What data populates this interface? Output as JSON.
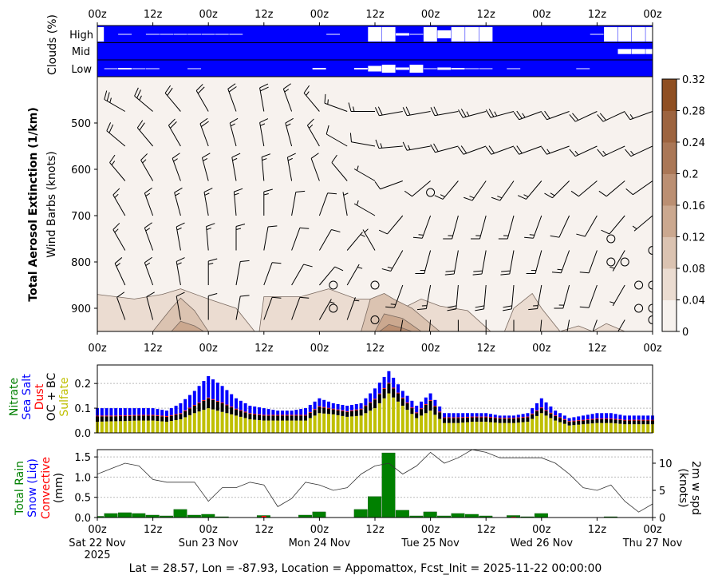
{
  "time_axis": {
    "hours_total": 120,
    "tick_labels": [
      "00z",
      "12z",
      "00z",
      "12z",
      "00z",
      "12z",
      "00z",
      "12z",
      "00z",
      "12z",
      "00z"
    ],
    "dates": [
      "Sat 22 Nov",
      "Sun 23 Nov",
      "Mon 24 Nov",
      "Tue 25 Nov",
      "Wed 26 Nov",
      "Thu 27 Nov"
    ],
    "year": "2025"
  },
  "footer": "Lat = 28.57, Lon = -87.93, Location = Appomattox, Fcst_Init = 2025-11-22 00:00:00",
  "chart_data": [
    {
      "type": "heatmap",
      "name": "clouds",
      "ylabel": "Clouds (%)",
      "rows": [
        "High",
        "Mid",
        "Low"
      ],
      "bin_hours": 3,
      "clear_fraction": {
        "High": [
          0.9,
          0,
          0.05,
          0,
          0.05,
          0.05,
          0.05,
          0.05,
          0.05,
          0.05,
          0.05,
          0,
          0,
          0,
          0,
          0,
          0,
          0.05,
          0,
          0,
          0.9,
          0.9,
          0.15,
          0.05,
          0.9,
          0.5,
          0.9,
          0.9,
          0.9,
          0,
          0,
          0,
          0,
          0,
          0,
          0,
          0.05,
          0.9,
          0.9,
          0.9,
          0.9
        ],
        "Mid": [
          0,
          0,
          0,
          0,
          0,
          0,
          0,
          0,
          0,
          0,
          0,
          0,
          0,
          0,
          0,
          0,
          0,
          0,
          0,
          0,
          0,
          0,
          0,
          0,
          0,
          0,
          0,
          0,
          0,
          0,
          0,
          0,
          0,
          0,
          0,
          0,
          0,
          0,
          0.3,
          0.3,
          0.3
        ],
        "Low": [
          0,
          0.05,
          0.1,
          0.05,
          0.05,
          0,
          0,
          0.05,
          0,
          0,
          0,
          0,
          0,
          0,
          0,
          0,
          0.1,
          0,
          0,
          0.1,
          0.35,
          0.5,
          0.15,
          0.5,
          0.05,
          0.15,
          0.1,
          0.05,
          0.05,
          0,
          0.05,
          0,
          0,
          0,
          0,
          0.05,
          0,
          0,
          0,
          0,
          0
        ]
      },
      "colors": {
        "cloud": "#0000ff",
        "clear": "#ffffff"
      }
    },
    {
      "type": "heatmap",
      "name": "aerosol_extinction",
      "ylabel": "Total Aerosol Extinction (1/km)",
      "ylabel2": "Wind Barbs (knots)",
      "y_ticks": [
        500,
        600,
        700,
        800,
        900
      ],
      "ylim": [
        400,
        950
      ],
      "colorbar": {
        "ticks": [
          "0",
          "0.04",
          "0.08",
          "0.12",
          "0.16",
          "0.2",
          "0.24",
          "0.28",
          "0.32"
        ],
        "colors": [
          "#f7f2ee",
          "#ebdcd1",
          "#dbc3b1",
          "#cba88f",
          "#bb8f72",
          "#aa7756",
          "#9d643f",
          "#8f4f22"
        ]
      },
      "contours": [
        {
          "level": 1,
          "points": [
            [
              0,
              870
            ],
            [
              8,
              880
            ],
            [
              14,
              870
            ],
            [
              18,
              858
            ],
            [
              24,
              880
            ],
            [
              30,
              900
            ],
            [
              34,
              950
            ],
            [
              0,
              950
            ]
          ]
        },
        {
          "level": 2,
          "points": [
            [
              12,
              950
            ],
            [
              16,
              900
            ],
            [
              18,
              878
            ],
            [
              21,
              905
            ],
            [
              24,
              950
            ]
          ]
        },
        {
          "level": 3,
          "points": [
            [
              16,
              950
            ],
            [
              18,
              928
            ],
            [
              21,
              938
            ],
            [
              23,
              950
            ]
          ]
        },
        {
          "level": 1,
          "points": [
            [
              35,
              950
            ],
            [
              36,
              875
            ],
            [
              44,
              875
            ],
            [
              50,
              858
            ],
            [
              56,
              880
            ],
            [
              62,
              880
            ],
            [
              66,
              900
            ],
            [
              70,
              880
            ],
            [
              74,
              895
            ],
            [
              80,
              905
            ],
            [
              85,
              950
            ]
          ]
        },
        {
          "level": 2,
          "points": [
            [
              57,
              950
            ],
            [
              59,
              880
            ],
            [
              62,
              868
            ],
            [
              64,
              880
            ],
            [
              68,
              900
            ],
            [
              74,
              950
            ]
          ]
        },
        {
          "level": 3,
          "points": [
            [
              60,
              950
            ],
            [
              62,
              912
            ],
            [
              66,
              922
            ],
            [
              70,
              950
            ]
          ]
        },
        {
          "level": 4,
          "points": [
            [
              61,
              950
            ],
            [
              63,
              935
            ],
            [
              66,
              943
            ],
            [
              68,
              950
            ]
          ]
        },
        {
          "level": 1,
          "points": [
            [
              88,
              950
            ],
            [
              90,
              900
            ],
            [
              94,
              868
            ],
            [
              96,
              900
            ],
            [
              100,
              950
            ]
          ]
        },
        {
          "level": 1,
          "points": [
            [
              100,
              950
            ],
            [
              104,
              938
            ],
            [
              107,
              950
            ]
          ]
        },
        {
          "level": 1,
          "points": [
            [
              107,
              950
            ],
            [
              110,
              933
            ],
            [
              114,
              950
            ]
          ]
        }
      ],
      "wind": {
        "levels": [
          475,
          550,
          625,
          700,
          775,
          850,
          925
        ],
        "time_step_hours": 6,
        "direction": [
          [
            300,
            300,
            310,
            320,
            330,
            340,
            350,
            340,
            320,
            290,
            270,
            260,
            260,
            260,
            255,
            255,
            250,
            250,
            245,
            245,
            250
          ],
          [
            310,
            310,
            320,
            330,
            340,
            345,
            350,
            345,
            330,
            300,
            280,
            265,
            260,
            255,
            250,
            250,
            250,
            250,
            245,
            245,
            245
          ],
          [
            320,
            320,
            330,
            340,
            345,
            350,
            355,
            350,
            340,
            320,
            300,
            250,
            230,
            220,
            215,
            215,
            220,
            225,
            230,
            230,
            235
          ],
          [
            320,
            330,
            340,
            345,
            350,
            355,
            0,
            10,
            20,
            350,
            300,
            220,
            200,
            195,
            195,
            195,
            200,
            205,
            210,
            220,
            230
          ],
          [
            320,
            330,
            340,
            350,
            355,
            0,
            10,
            20,
            30,
            40,
            330,
            210,
            195,
            190,
            190,
            190,
            195,
            200,
            200,
            210,
            0
          ],
          [
            330,
            335,
            340,
            350,
            0,
            10,
            20,
            30,
            40,
            30,
            300,
            200,
            190,
            185,
            185,
            185,
            190,
            195,
            200,
            210,
            0
          ],
          [
            340,
            340,
            345,
            350,
            0,
            10,
            20,
            20,
            30,
            20,
            250,
            190,
            185,
            180,
            180,
            180,
            185,
            190,
            200,
            210,
            0
          ]
        ],
        "speed": [
          [
            25,
            25,
            25,
            20,
            20,
            20,
            20,
            15,
            15,
            15,
            15,
            20,
            20,
            20,
            25,
            25,
            25,
            20,
            20,
            20,
            15
          ],
          [
            20,
            20,
            20,
            20,
            20,
            15,
            15,
            15,
            15,
            10,
            10,
            15,
            15,
            20,
            20,
            20,
            20,
            15,
            15,
            15,
            15
          ],
          [
            15,
            15,
            15,
            15,
            15,
            15,
            15,
            15,
            10,
            10,
            5,
            10,
            10,
            15,
            15,
            15,
            15,
            15,
            10,
            10,
            10
          ],
          [
            15,
            15,
            15,
            15,
            15,
            15,
            15,
            10,
            10,
            5,
            5,
            10,
            15,
            15,
            15,
            15,
            15,
            10,
            10,
            10,
            5
          ],
          [
            15,
            15,
            15,
            15,
            15,
            15,
            10,
            10,
            10,
            5,
            5,
            15,
            15,
            20,
            20,
            20,
            15,
            15,
            10,
            5,
            0
          ],
          [
            15,
            15,
            15,
            15,
            15,
            10,
            10,
            10,
            10,
            5,
            0,
            15,
            15,
            20,
            20,
            20,
            15,
            15,
            10,
            5,
            0
          ],
          [
            10,
            10,
            10,
            10,
            10,
            10,
            10,
            10,
            5,
            5,
            0,
            10,
            15,
            15,
            15,
            15,
            15,
            10,
            10,
            5,
            0
          ]
        ],
        "calm_points": [
          [
            72,
            650
          ],
          [
            51,
            850
          ],
          [
            51,
            900
          ],
          [
            111,
            750
          ],
          [
            111,
            800
          ],
          [
            114,
            800
          ],
          [
            117,
            850
          ],
          [
            117,
            900
          ],
          [
            120,
            900
          ]
        ]
      }
    },
    {
      "type": "bar",
      "name": "aerosol_species",
      "stacked": true,
      "time_step_hours": 3,
      "ylim": [
        0,
        0.275
      ],
      "y_ticks": [
        "0.0",
        "0.1",
        "0.2"
      ],
      "legend": [
        {
          "label": "Nitrate",
          "color": "#008000"
        },
        {
          "label": "Sea Salt",
          "color": "#0000ff"
        },
        {
          "label": "Dust",
          "color": "#ff0000"
        },
        {
          "label": "OC + BC",
          "color": "#000000"
        },
        {
          "label": "Sulfate",
          "color": "#bfbf00"
        }
      ],
      "series": {
        "total": [
          0.1,
          0.1,
          0.1,
          0.1,
          0.1,
          0.09,
          0.12,
          0.17,
          0.23,
          0.19,
          0.14,
          0.11,
          0.1,
          0.09,
          0.09,
          0.1,
          0.14,
          0.12,
          0.11,
          0.12,
          0.18,
          0.25,
          0.17,
          0.11,
          0.16,
          0.08,
          0.08,
          0.08,
          0.08,
          0.07,
          0.07,
          0.08,
          0.14,
          0.09,
          0.06,
          0.07,
          0.08,
          0.08,
          0.07,
          0.07,
          0.07
        ],
        "sulfate": [
          0.045,
          0.047,
          0.048,
          0.05,
          0.05,
          0.045,
          0.055,
          0.08,
          0.1,
          0.085,
          0.07,
          0.055,
          0.05,
          0.05,
          0.05,
          0.05,
          0.08,
          0.075,
          0.065,
          0.07,
          0.1,
          0.16,
          0.11,
          0.06,
          0.09,
          0.04,
          0.04,
          0.045,
          0.045,
          0.04,
          0.04,
          0.045,
          0.08,
          0.05,
          0.03,
          0.035,
          0.04,
          0.04,
          0.035,
          0.035,
          0.035
        ],
        "ocbc": [
          0.022,
          0.02,
          0.02,
          0.02,
          0.02,
          0.02,
          0.022,
          0.03,
          0.04,
          0.035,
          0.025,
          0.022,
          0.02,
          0.02,
          0.02,
          0.02,
          0.025,
          0.02,
          0.02,
          0.025,
          0.035,
          0.04,
          0.03,
          0.02,
          0.04,
          0.02,
          0.02,
          0.018,
          0.018,
          0.018,
          0.018,
          0.018,
          0.02,
          0.018,
          0.015,
          0.015,
          0.015,
          0.015,
          0.015,
          0.015,
          0.015
        ],
        "dust": 0.003
      }
    },
    {
      "type": "bar",
      "name": "precipitation",
      "time_step_hours": 3,
      "ylim": [
        0,
        1.68
      ],
      "y_ticks": [
        "0.0",
        "0.5",
        "1.0",
        "1.5"
      ],
      "legend": [
        {
          "label": "Total Rain",
          "color": "#008000"
        },
        {
          "label": "Snow (Liq)",
          "color": "#0000ff"
        },
        {
          "label": "Convective",
          "color": "#ff0000"
        },
        {
          "label": "(mm)",
          "color": "#000000"
        }
      ],
      "total_rain": [
        0.03,
        0.1,
        0.12,
        0.1,
        0.06,
        0.04,
        0.2,
        0.06,
        0.08,
        0.02,
        0,
        0,
        0.05,
        0,
        0,
        0.06,
        0.14,
        0,
        0,
        0.2,
        0.52,
        1.6,
        0.18,
        0.04,
        0.14,
        0.04,
        0.1,
        0.08,
        0.04,
        0,
        0.05,
        0.02,
        0.1,
        0,
        0,
        0,
        0,
        0.02,
        0,
        0,
        0
      ],
      "convective": [
        0,
        0,
        0,
        0,
        0,
        0,
        0,
        0,
        0,
        0,
        0,
        0,
        0.04,
        0,
        0,
        0,
        0,
        0,
        0,
        0,
        0,
        0,
        0,
        0,
        0,
        0,
        0,
        0,
        0,
        0,
        0.02,
        0,
        0,
        0,
        0,
        0,
        0,
        0,
        0,
        0,
        0
      ],
      "wind_speed": {
        "ylabel": "2m w spd",
        "ylabel2": "(knots)",
        "ylim": [
          0,
          12.5
        ],
        "y_ticks": [
          "0",
          "5",
          "10"
        ],
        "values": [
          8,
          9,
          10,
          9.5,
          7,
          6.5,
          6.5,
          6.5,
          3,
          5.5,
          5.5,
          6.5,
          6,
          2,
          3.5,
          6.5,
          6,
          5,
          5.5,
          8,
          9.5,
          10,
          8,
          9.5,
          12,
          10,
          11,
          12.5,
          12,
          11,
          11,
          11,
          11,
          10,
          8,
          5.5,
          5,
          6,
          3,
          1,
          2.5
        ]
      }
    }
  ]
}
